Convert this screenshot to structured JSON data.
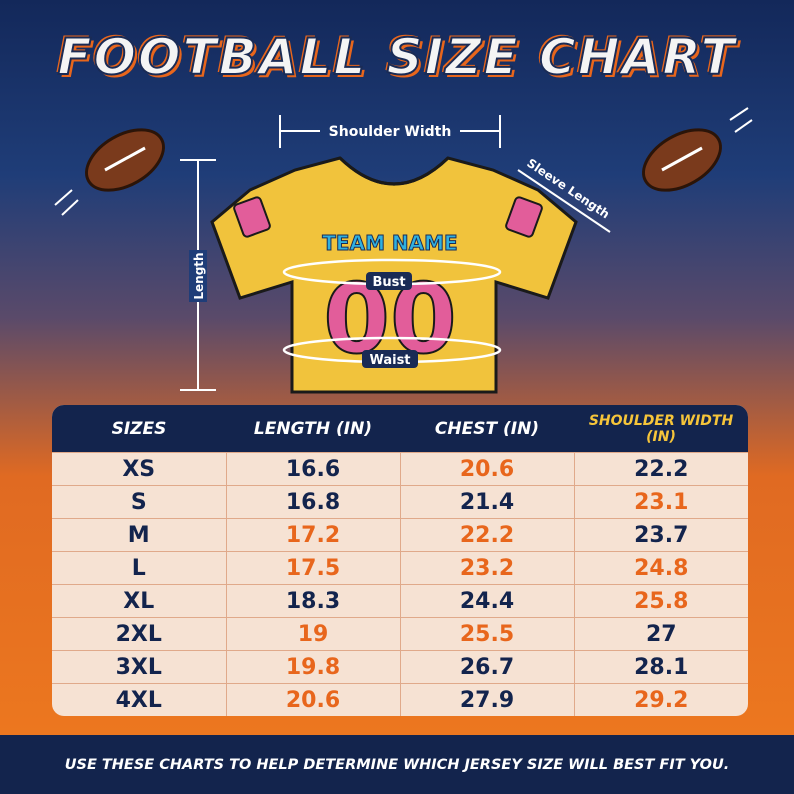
{
  "header": {
    "title": "FOOTBALL SIZE CHART"
  },
  "diagram": {
    "shoulder_width": "Shoulder Width",
    "sleeve_length": "Sleeve Length",
    "length": "Length",
    "bust": "Bust",
    "waist": "Waist",
    "team_name": "TEAM NAME",
    "number": "00"
  },
  "table": {
    "columns": [
      "SIZES",
      "LENGTH (IN)",
      "CHEST (IN)",
      "SHOULDER WIDTH (IN)"
    ],
    "rows": [
      [
        "XS",
        16.6,
        20.6,
        22.2
      ],
      [
        "S",
        16.8,
        21.4,
        23.1
      ],
      [
        "M",
        17.2,
        22.2,
        23.7
      ],
      [
        "L",
        17.5,
        23.2,
        24.8
      ],
      [
        "XL",
        18.3,
        24.4,
        25.8
      ],
      [
        "2XL",
        19,
        25.5,
        27
      ],
      [
        "3XL",
        19.8,
        26.7,
        28.1
      ],
      [
        "4XL",
        20.6,
        27.9,
        29.2
      ]
    ]
  },
  "footer": {
    "text": "USE THESE CHARTS TO HELP DETERMINE WHICH JERSEY SIZE WILL BEST FIT YOU."
  }
}
